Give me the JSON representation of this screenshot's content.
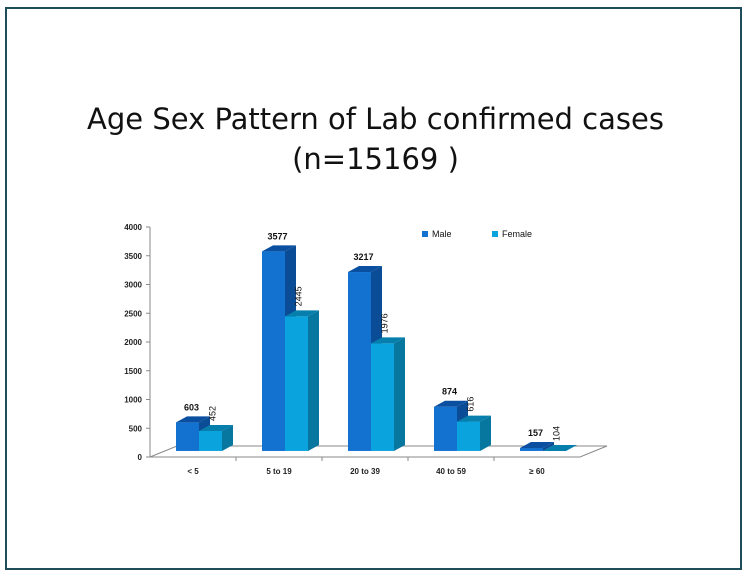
{
  "title_line1": "Age Sex Pattern of Lab confirmed cases",
  "title_line2": "(n=15169 )",
  "colors": {
    "male": "#1372cf",
    "male_top": "#0b4fa0",
    "male_side": "#0a4d96",
    "female": "#0ba3dd",
    "female_top": "#067fad",
    "female_side": "#07779f",
    "floor": "#ffffff",
    "axis": "#8a8a8a"
  },
  "chart_data": {
    "type": "bar",
    "categories": [
      "< 5",
      "5 to 19",
      "20 to 39",
      "40 to 59",
      "≥ 60"
    ],
    "series": [
      {
        "name": "Male",
        "values": [
          603,
          3577,
          3217,
          874,
          157
        ]
      },
      {
        "name": "Female",
        "values": [
          452,
          2445,
          1976,
          616,
          104
        ]
      }
    ],
    "yticks": [
      "0",
      "500",
      "1000",
      "1500",
      "2000",
      "2500",
      "3000",
      "3500",
      "4000"
    ],
    "ylim": [
      0,
      4000
    ],
    "legend_position": "top-right",
    "grid": false,
    "three_d": true
  }
}
